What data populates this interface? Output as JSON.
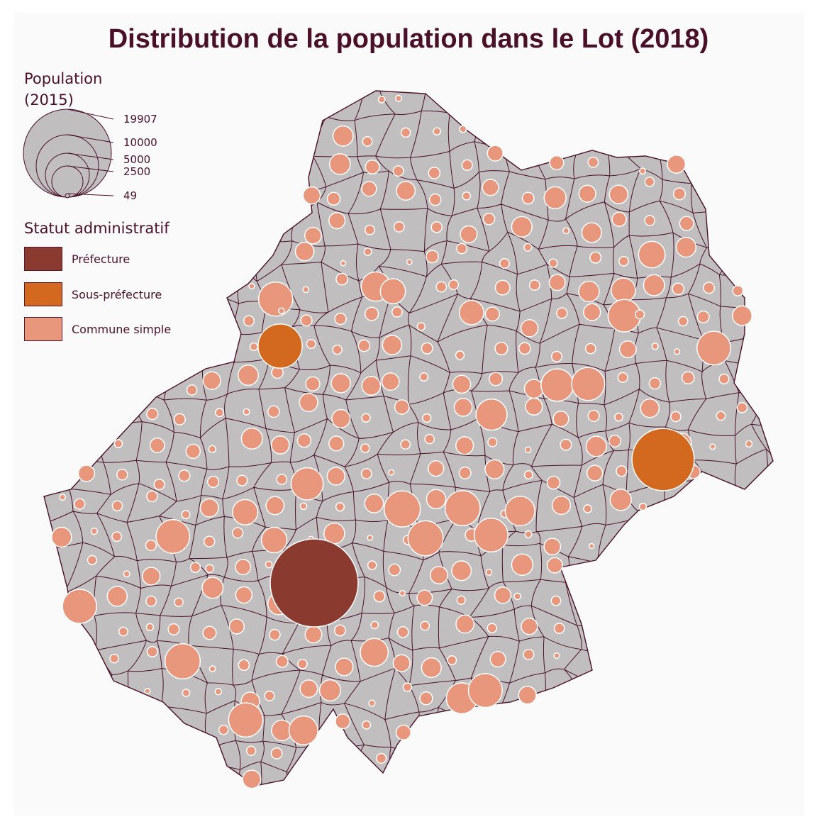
{
  "title": "Distribution de la population dans le Lot (2018)",
  "legend": {
    "size_title_line1": "Population",
    "size_title_line2": "(2015)",
    "size_values": [
      "19907",
      "10000",
      "5000",
      "2500",
      "49"
    ],
    "status_title": "Statut administratif",
    "status_items": [
      {
        "label": "Préfecture",
        "color": "#8b3a30"
      },
      {
        "label": "Sous-préfecture",
        "color": "#d2691e"
      },
      {
        "label": "Commune simple",
        "color": "#e8967c"
      }
    ]
  },
  "colors": {
    "territory": "#c0bebf",
    "border": "#4a1028",
    "bubble_stroke": "#ffffff",
    "text": "#4a1028",
    "panel": "#fafafa"
  },
  "map_data": {
    "type": "proportional-symbol-map",
    "variable": "Population (2015)",
    "size_range": [
      49,
      19907
    ],
    "prefecture_population": 19907,
    "subprefecture_populations": [
      5000,
      10000
    ]
  }
}
